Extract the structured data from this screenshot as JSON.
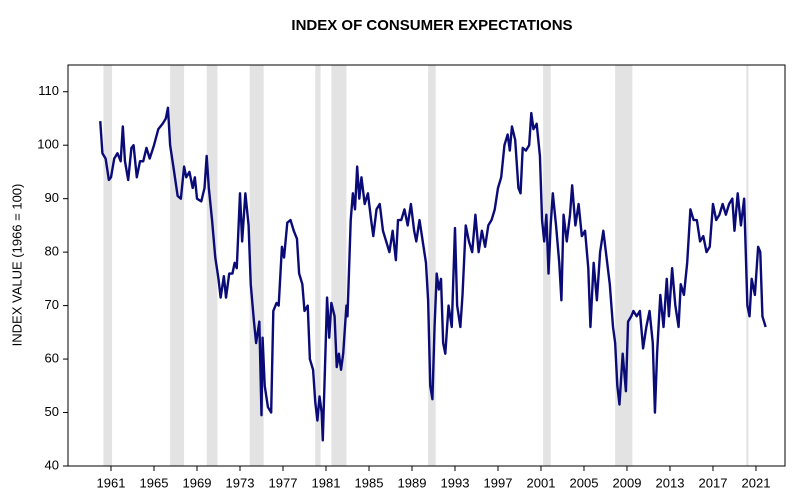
{
  "chart_data": {
    "type": "line",
    "title": "INDEX OF CONSUMER EXPECTATIONS",
    "y_label": "INDEX VALUE (1966 = 100)",
    "xlim": [
      1957,
      2023.7
    ],
    "xticks": [
      1961,
      1965,
      1969,
      1973,
      1977,
      1981,
      1985,
      1989,
      1993,
      1997,
      2001,
      2005,
      2009,
      2013,
      2017,
      2021
    ],
    "ylim": [
      40,
      115
    ],
    "yticks": [
      40,
      50,
      60,
      70,
      80,
      90,
      100,
      110
    ],
    "recessions": [
      [
        1960.3,
        1961.1
      ],
      [
        1966.5,
        1967.8
      ],
      [
        1969.9,
        1970.9
      ],
      [
        1973.9,
        1975.2
      ],
      [
        1980.0,
        1980.5
      ],
      [
        1981.5,
        1982.9
      ],
      [
        1990.5,
        1991.2
      ],
      [
        2001.2,
        2001.9
      ],
      [
        2007.9,
        2009.5
      ],
      [
        2020.1,
        2020.3
      ]
    ],
    "recession_color": "#e3e3e3",
    "x": [
      1960.0,
      1960.2,
      1960.5,
      1960.8,
      1961.0,
      1961.3,
      1961.6,
      1961.9,
      1962.1,
      1962.3,
      1962.6,
      1962.9,
      1963.1,
      1963.4,
      1963.7,
      1964.0,
      1964.3,
      1964.6,
      1965.0,
      1965.4,
      1965.8,
      1966.1,
      1966.3,
      1966.5,
      1966.8,
      1967.2,
      1967.5,
      1967.8,
      1968.0,
      1968.3,
      1968.6,
      1968.8,
      1969.0,
      1969.4,
      1969.7,
      1969.9,
      1970.1,
      1970.4,
      1970.7,
      1971.0,
      1971.2,
      1971.5,
      1971.7,
      1972.0,
      1972.3,
      1972.5,
      1972.7,
      1973.0,
      1973.2,
      1973.5,
      1973.8,
      1974.0,
      1974.3,
      1974.5,
      1974.8,
      1975.0,
      1975.1,
      1975.3,
      1975.6,
      1975.9,
      1976.1,
      1976.4,
      1976.6,
      1976.9,
      1977.1,
      1977.4,
      1977.7,
      1978.0,
      1978.3,
      1978.5,
      1978.8,
      1979.0,
      1979.3,
      1979.5,
      1979.8,
      1980.0,
      1980.2,
      1980.4,
      1980.6,
      1980.7,
      1980.9,
      1981.1,
      1981.3,
      1981.5,
      1981.8,
      1982.0,
      1982.2,
      1982.4,
      1982.6,
      1982.9,
      1983.0,
      1983.3,
      1983.5,
      1983.7,
      1983.9,
      1984.1,
      1984.3,
      1984.6,
      1984.9,
      1985.2,
      1985.4,
      1985.7,
      1986.0,
      1986.3,
      1986.6,
      1986.9,
      1987.2,
      1987.5,
      1987.7,
      1988.0,
      1988.3,
      1988.6,
      1988.9,
      1989.2,
      1989.4,
      1989.7,
      1990.0,
      1990.3,
      1990.5,
      1990.7,
      1990.9,
      1991.1,
      1991.3,
      1991.5,
      1991.7,
      1991.9,
      1992.1,
      1992.4,
      1992.7,
      1993.0,
      1993.2,
      1993.5,
      1993.7,
      1994.0,
      1994.3,
      1994.6,
      1994.9,
      1995.2,
      1995.5,
      1995.8,
      1996.1,
      1996.4,
      1996.7,
      1997.0,
      1997.3,
      1997.6,
      1997.9,
      1998.1,
      1998.3,
      1998.6,
      1998.9,
      1999.1,
      1999.3,
      1999.6,
      1999.9,
      2000.1,
      2000.3,
      2000.6,
      2000.9,
      2001.1,
      2001.3,
      2001.5,
      2001.7,
      2001.9,
      2002.1,
      2002.4,
      2002.7,
      2002.9,
      2003.1,
      2003.4,
      2003.7,
      2003.9,
      2004.2,
      2004.5,
      2004.8,
      2005.1,
      2005.4,
      2005.6,
      2005.9,
      2006.2,
      2006.5,
      2006.8,
      2007.1,
      2007.4,
      2007.7,
      2007.9,
      2008.1,
      2008.3,
      2008.6,
      2008.9,
      2009.1,
      2009.4,
      2009.6,
      2009.9,
      2010.2,
      2010.5,
      2010.8,
      2011.1,
      2011.4,
      2011.6,
      2011.8,
      2012.1,
      2012.4,
      2012.7,
      2012.9,
      2013.2,
      2013.5,
      2013.8,
      2014.0,
      2014.3,
      2014.6,
      2014.9,
      2015.2,
      2015.5,
      2015.8,
      2016.1,
      2016.4,
      2016.7,
      2017.0,
      2017.3,
      2017.6,
      2017.9,
      2018.2,
      2018.5,
      2018.8,
      2019.0,
      2019.3,
      2019.6,
      2019.9,
      2020.2,
      2020.4,
      2020.6,
      2020.9,
      2021.2,
      2021.4,
      2021.6,
      2021.9
    ],
    "series": [
      {
        "color": "#0b0b78",
        "values": [
          104.5,
          98.5,
          97.5,
          93.5,
          94,
          97.5,
          98.5,
          97,
          103.5,
          97,
          93.5,
          99.5,
          100,
          94,
          97,
          97,
          99.5,
          97.5,
          100,
          103,
          104,
          105,
          107,
          100,
          96,
          90.5,
          90,
          96,
          94,
          95,
          92,
          94,
          90,
          89.5,
          92,
          98,
          92,
          86,
          79,
          75,
          71.5,
          75.5,
          71.5,
          76,
          76,
          78,
          77,
          91,
          82,
          91,
          85,
          74,
          67,
          63,
          67,
          49.5,
          64,
          55,
          51,
          50,
          69,
          70.5,
          70,
          81,
          79,
          85.5,
          86,
          84,
          82.5,
          76,
          74,
          69,
          70,
          60,
          58,
          52,
          48.5,
          53,
          50,
          44.8,
          58,
          71.5,
          64,
          70.5,
          68,
          58.5,
          61,
          58,
          61,
          70,
          68,
          86,
          91,
          88,
          96,
          90,
          94,
          89,
          91,
          86,
          83,
          88,
          89,
          84,
          82,
          80,
          84,
          78.5,
          86,
          86,
          88,
          85,
          89,
          84,
          82,
          86,
          82,
          78,
          71,
          55,
          52.5,
          66,
          76,
          73,
          75,
          63,
          61,
          70,
          66,
          84.5,
          70,
          66,
          72,
          85,
          82,
          80,
          87,
          80,
          84,
          81,
          85,
          86,
          88,
          92,
          94,
          100,
          102,
          99,
          103.5,
          101,
          92,
          91,
          99.5,
          99,
          100,
          106,
          103,
          104,
          98,
          86,
          82,
          87,
          76,
          85,
          91,
          85,
          78,
          71,
          87,
          82,
          87,
          92.5,
          85,
          89,
          83,
          84,
          77,
          66,
          78,
          71,
          80,
          84,
          79,
          74,
          66,
          63,
          55,
          51.5,
          61,
          54,
          67,
          68,
          69,
          68,
          69,
          62,
          66,
          69,
          63,
          50,
          61,
          72,
          66,
          75,
          68,
          77,
          70,
          66,
          74,
          72,
          78,
          88,
          86,
          86,
          82,
          83,
          80,
          81,
          89,
          86,
          87,
          89,
          87,
          89,
          90,
          84,
          91,
          85,
          90,
          70,
          68,
          75,
          72,
          81,
          80,
          68,
          66
        ]
      }
    ]
  }
}
